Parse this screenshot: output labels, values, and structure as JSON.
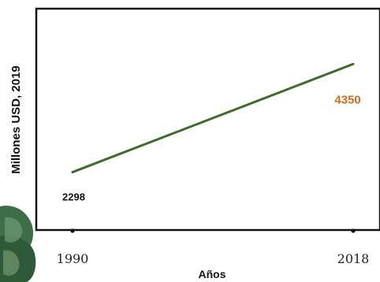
{
  "chart_data": {
    "type": "line",
    "title": "",
    "xlabel": "Años",
    "ylabel": "Millones USD, 2019",
    "x": [
      1990,
      2018
    ],
    "x_tick_labels": [
      "1990",
      "2018"
    ],
    "series": [
      {
        "values": [
          2298,
          4350
        ],
        "color": "#3f6b2a"
      }
    ],
    "data_labels": [
      {
        "text": "2298",
        "color": "#111111"
      },
      {
        "text": "4350",
        "color": "#d46a1a"
      }
    ],
    "xlim": [
      1990,
      2018
    ],
    "ylim": [
      1200,
      5400
    ],
    "grid": false,
    "legend": "none"
  }
}
